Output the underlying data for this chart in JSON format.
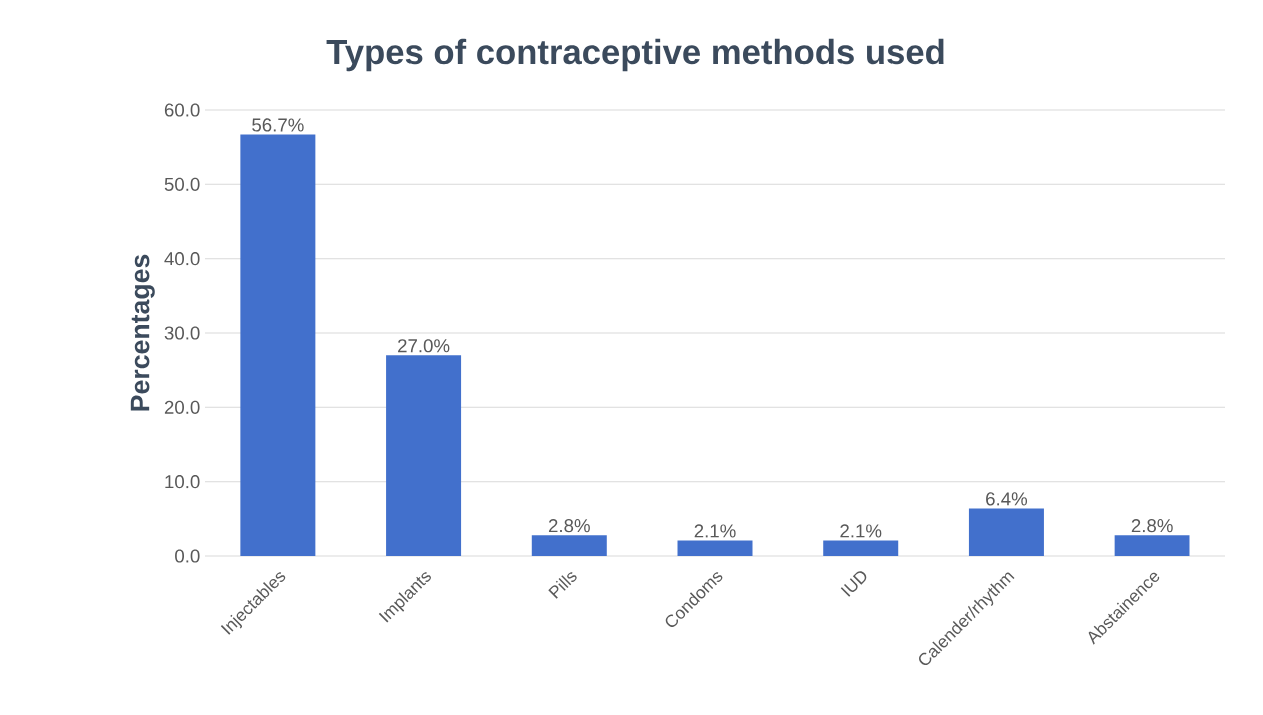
{
  "chart_data": {
    "type": "bar",
    "title": "Types of contraceptive methods used",
    "ylabel": "Percentages",
    "categories": [
      "Injectables",
      "Implants",
      "Pills",
      "Condoms",
      "IUD",
      "Calender/rhythm",
      "Abstainence"
    ],
    "values": [
      56.7,
      27.0,
      2.8,
      2.1,
      2.1,
      6.4,
      2.8
    ],
    "value_labels": [
      "56.7%",
      "27.0%",
      "2.8%",
      "2.1%",
      "2.1%",
      "6.4%",
      "2.8%"
    ],
    "color": "#4270cc",
    "ylim": [
      0,
      60
    ],
    "yticks": [
      {
        "value": 0,
        "label": "0.0"
      },
      {
        "value": 10,
        "label": "10.0"
      },
      {
        "value": 20,
        "label": "20.0"
      },
      {
        "value": 30,
        "label": "30.0"
      },
      {
        "value": 40,
        "label": "40.0"
      },
      {
        "value": 50,
        "label": "50.0"
      },
      {
        "value": 60,
        "label": "60.0"
      }
    ],
    "grid": "y"
  }
}
